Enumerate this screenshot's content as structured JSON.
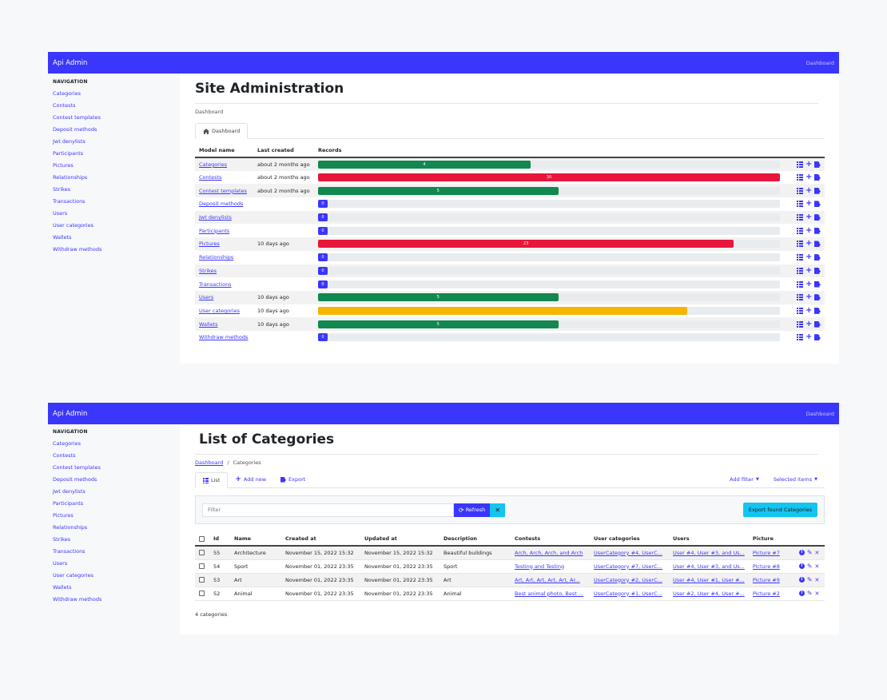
{
  "app": {
    "brand": "Api Admin",
    "top_link": "Dashboard"
  },
  "nav": {
    "heading": "NAVIGATION",
    "items": [
      "Categories",
      "Contests",
      "Contest templates",
      "Deposit methods",
      "Jwt denylists",
      "Participants",
      "Pictures",
      "Relationships",
      "Strikes",
      "Transactions",
      "Users",
      "User categories",
      "Wallets",
      "Withdraw methods"
    ]
  },
  "dashboard": {
    "title": "Site Administration",
    "breadcrumb": "Dashboard",
    "tab_label": "Dashboard",
    "headers": {
      "model": "Model name",
      "last_created": "Last created",
      "records": "Records"
    },
    "rows": [
      {
        "name": "Categories",
        "last": "about 2 months ago",
        "count": "4",
        "fill": 0.46,
        "color": "#11884f"
      },
      {
        "name": "Contests",
        "last": "about 2 months ago",
        "count": "30",
        "fill": 1.0,
        "color": "#e7163a"
      },
      {
        "name": "Contest templates",
        "last": "about 2 months ago",
        "count": "5",
        "fill": 0.52,
        "color": "#11884f"
      },
      {
        "name": "Deposit methods",
        "last": "",
        "count": "0",
        "fill": 0,
        "color": "#3a36fb"
      },
      {
        "name": "Jwt denylists",
        "last": "",
        "count": "0",
        "fill": 0,
        "color": "#3a36fb"
      },
      {
        "name": "Participants",
        "last": "",
        "count": "0",
        "fill": 0,
        "color": "#3a36fb"
      },
      {
        "name": "Pictures",
        "last": "10 days ago",
        "count": "23",
        "fill": 0.9,
        "color": "#e7163a"
      },
      {
        "name": "Relationships",
        "last": "",
        "count": "0",
        "fill": 0,
        "color": "#3a36fb"
      },
      {
        "name": "Strikes",
        "last": "",
        "count": "0",
        "fill": 0,
        "color": "#3a36fb"
      },
      {
        "name": "Transactions",
        "last": "",
        "count": "0",
        "fill": 0,
        "color": "#3a36fb"
      },
      {
        "name": "Users",
        "last": "10 days ago",
        "count": "5",
        "fill": 0.52,
        "color": "#11884f"
      },
      {
        "name": "User categories",
        "last": "10 days ago",
        "count": "",
        "fill": 0.8,
        "color": "#f5b500"
      },
      {
        "name": "Wallets",
        "last": "10 days ago",
        "count": "5",
        "fill": 0.52,
        "color": "#11884f"
      },
      {
        "name": "Withdraw methods",
        "last": "",
        "count": "0",
        "fill": 0,
        "color": "#3a36fb"
      }
    ]
  },
  "list": {
    "title": "List of Categories",
    "breadcrumb_home": "Dashboard",
    "breadcrumb_sep": "/",
    "breadcrumb_current": "Categories",
    "tabs": {
      "list": "List",
      "add_new": "Add new",
      "export": "Export",
      "add_filter": "Add filter",
      "selected_items": "Selected items"
    },
    "filter_placeholder": "Filter",
    "refresh_label": "Refresh",
    "clear_label": "✕",
    "export_found_label": "Export found Categories",
    "headers": [
      "Id",
      "Name",
      "Created at",
      "Updated at",
      "Description",
      "Contests",
      "User categories",
      "Users",
      "Picture"
    ],
    "rows": [
      {
        "id": "55",
        "name": "Architecture",
        "created": "November 15, 2022 15:32",
        "updated": "November 15, 2022 15:32",
        "description": "Beautiful buildings",
        "contests": "Arch, Arch, Arch, and Arch",
        "user_categories": "UserCategory #4, UserC...",
        "users": "User #4, User #3, and Us...",
        "picture": "Picture #7"
      },
      {
        "id": "54",
        "name": "Sport",
        "created": "November 01, 2022 23:35",
        "updated": "November 01, 2022 23:35",
        "description": "Sport",
        "contests": "Testing and Testing",
        "user_categories": "UserCategory #7, UserC...",
        "users": "User #4, User #3, and Us...",
        "picture": "Picture #8"
      },
      {
        "id": "53",
        "name": "Art",
        "created": "November 01, 2022 23:35",
        "updated": "November 01, 2022 23:35",
        "description": "Art",
        "contests": "Art, Art, Art, Art, Art, Ar...",
        "user_categories": "UserCategory #2, UserC...",
        "users": "User #4, User #1, User #...",
        "picture": "Picture #9"
      },
      {
        "id": "52",
        "name": "Animal",
        "created": "November 01, 2022 23:35",
        "updated": "November 01, 2022 23:35",
        "description": "Animal",
        "contests": "Best animal photo, Best ...",
        "user_categories": "UserCategory #1, UserC...",
        "users": "User #2, User #4, User #...",
        "picture": "Picture #2"
      }
    ],
    "count_text": "4 categories"
  },
  "icons": {
    "list": "list-icon",
    "add": "plus-icon",
    "export": "export-icon",
    "info": "info-icon",
    "edit": "pencil-icon",
    "delete": "x-icon",
    "home": "home-icon",
    "refresh": "refresh-icon"
  }
}
